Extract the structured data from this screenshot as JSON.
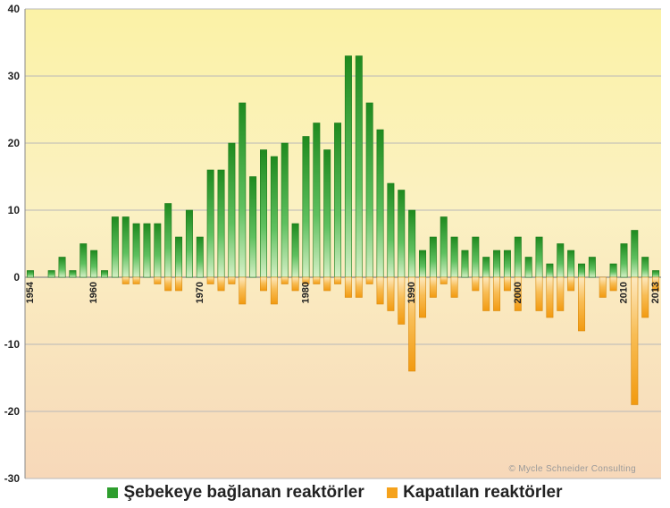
{
  "chart_data": {
    "type": "bar",
    "x": [
      1954,
      1955,
      1956,
      1957,
      1958,
      1959,
      1960,
      1961,
      1962,
      1963,
      1964,
      1965,
      1966,
      1967,
      1968,
      1969,
      1970,
      1971,
      1972,
      1973,
      1974,
      1975,
      1976,
      1977,
      1978,
      1979,
      1980,
      1981,
      1982,
      1983,
      1984,
      1985,
      1986,
      1987,
      1988,
      1989,
      1990,
      1991,
      1992,
      1993,
      1994,
      1995,
      1996,
      1997,
      1998,
      1999,
      2000,
      2001,
      2002,
      2003,
      2004,
      2005,
      2006,
      2007,
      2008,
      2009,
      2010,
      2011,
      2012,
      2013
    ],
    "x_tick_labels": [
      "1954",
      "1960",
      "1970",
      "1980",
      "1990",
      "2000",
      "2010",
      "2013"
    ],
    "series": [
      {
        "name": "Şebekeye bağlanan reaktörler",
        "color": "#2e9e2e",
        "values": [
          1,
          0,
          1,
          3,
          1,
          5,
          4,
          1,
          9,
          9,
          8,
          8,
          8,
          11,
          6,
          10,
          6,
          16,
          16,
          20,
          26,
          15,
          19,
          18,
          20,
          8,
          21,
          23,
          19,
          23,
          33,
          33,
          26,
          22,
          14,
          13,
          10,
          4,
          6,
          9,
          6,
          4,
          6,
          3,
          4,
          4,
          6,
          3,
          6,
          2,
          5,
          4,
          2,
          3,
          0,
          2,
          5,
          7,
          3,
          1
        ]
      },
      {
        "name": "Kapatılan reaktörler",
        "color": "#f5a21c",
        "values": [
          0,
          0,
          0,
          0,
          0,
          0,
          0,
          0,
          0,
          -1,
          -1,
          0,
          -1,
          -2,
          -2,
          0,
          0,
          -1,
          -2,
          -1,
          -4,
          0,
          -2,
          -4,
          -1,
          -2,
          -1,
          -1,
          -2,
          -1,
          -3,
          -3,
          -1,
          -4,
          -5,
          -7,
          -14,
          -6,
          -3,
          -1,
          -3,
          0,
          -2,
          -5,
          -5,
          -2,
          -5,
          0,
          -5,
          -6,
          -5,
          -2,
          -8,
          0,
          -3,
          -2,
          0,
          -19,
          -6,
          -2
        ]
      }
    ],
    "ylim": [
      -30,
      40
    ],
    "yticks": [
      -30,
      -20,
      -10,
      0,
      10,
      20,
      30,
      40
    ],
    "grid": true,
    "legend_position": "bottom",
    "copyright": "© Mycle Schneider Consulting"
  }
}
